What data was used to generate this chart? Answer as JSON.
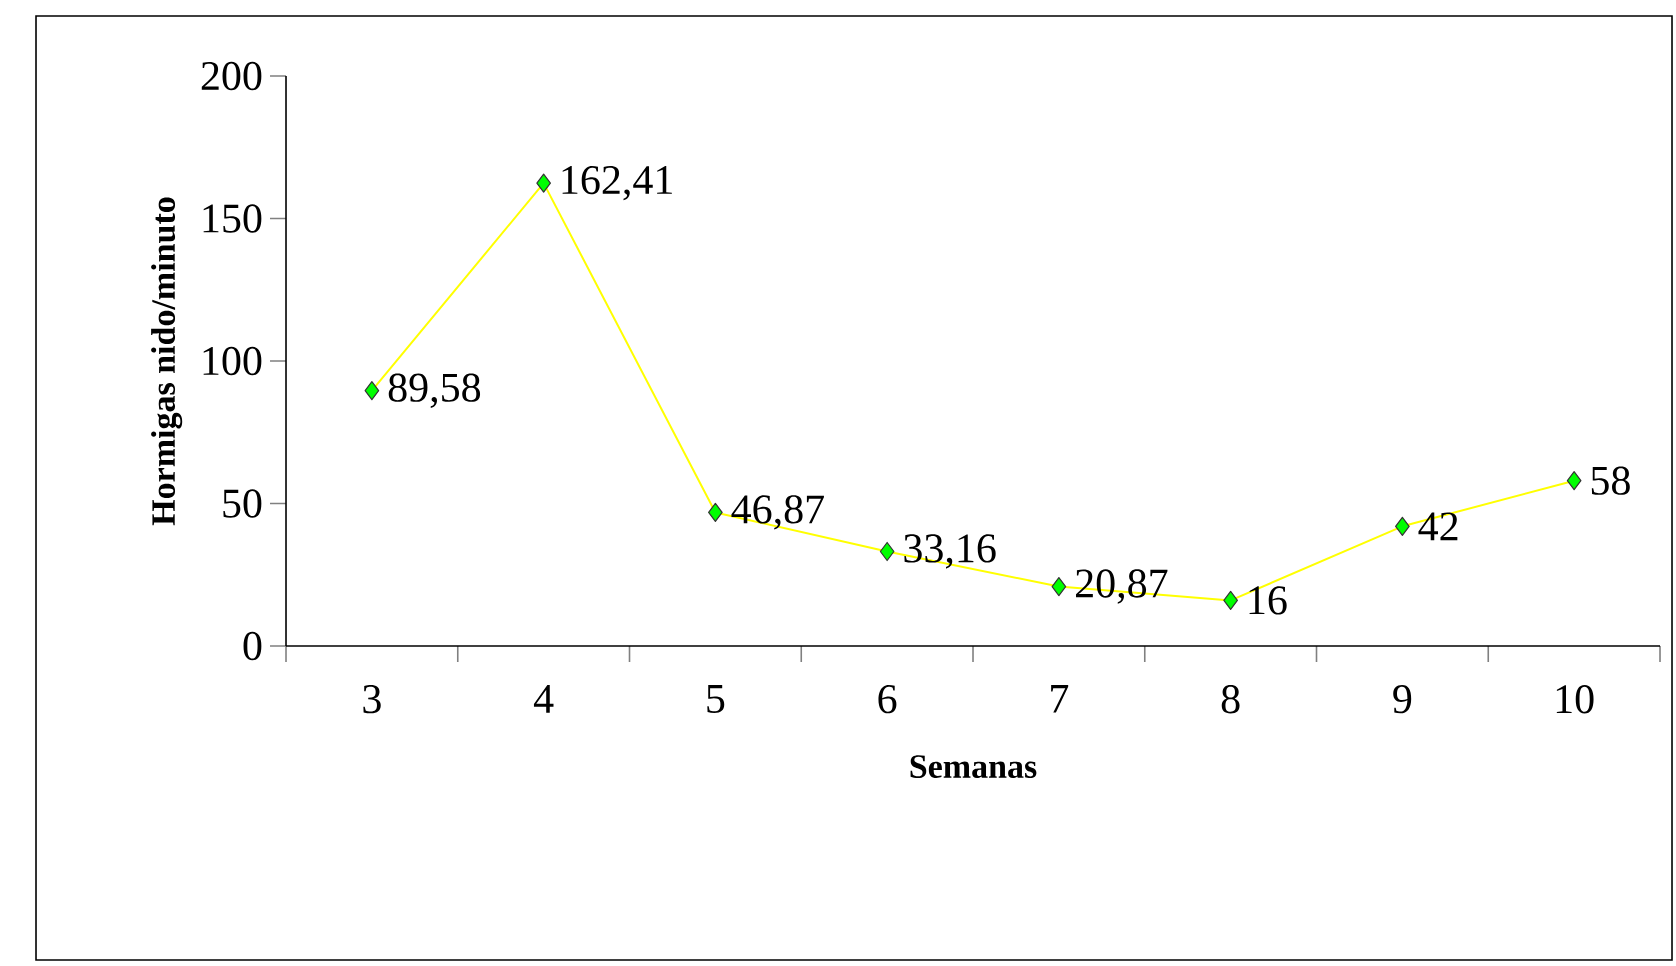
{
  "chart_data": {
    "type": "line",
    "xlabel": "Semanas",
    "ylabel": "Hormigas nido/minuto",
    "categories": [
      "3",
      "4",
      "5",
      "6",
      "7",
      "8",
      "9",
      "10"
    ],
    "series": [
      {
        "color": "#ffff00",
        "values": [
          89.58,
          162.41,
          46.87,
          33.16,
          20.87,
          16,
          42,
          58
        ],
        "value_labels": [
          "89,58",
          "162,41",
          "46,87",
          "33,16",
          "20,87",
          "16",
          "42",
          "58"
        ]
      }
    ],
    "ylim": [
      0,
      200
    ],
    "yticks": [
      0,
      50,
      100,
      150,
      200
    ],
    "marker": "diamond",
    "line_style": "solid"
  }
}
